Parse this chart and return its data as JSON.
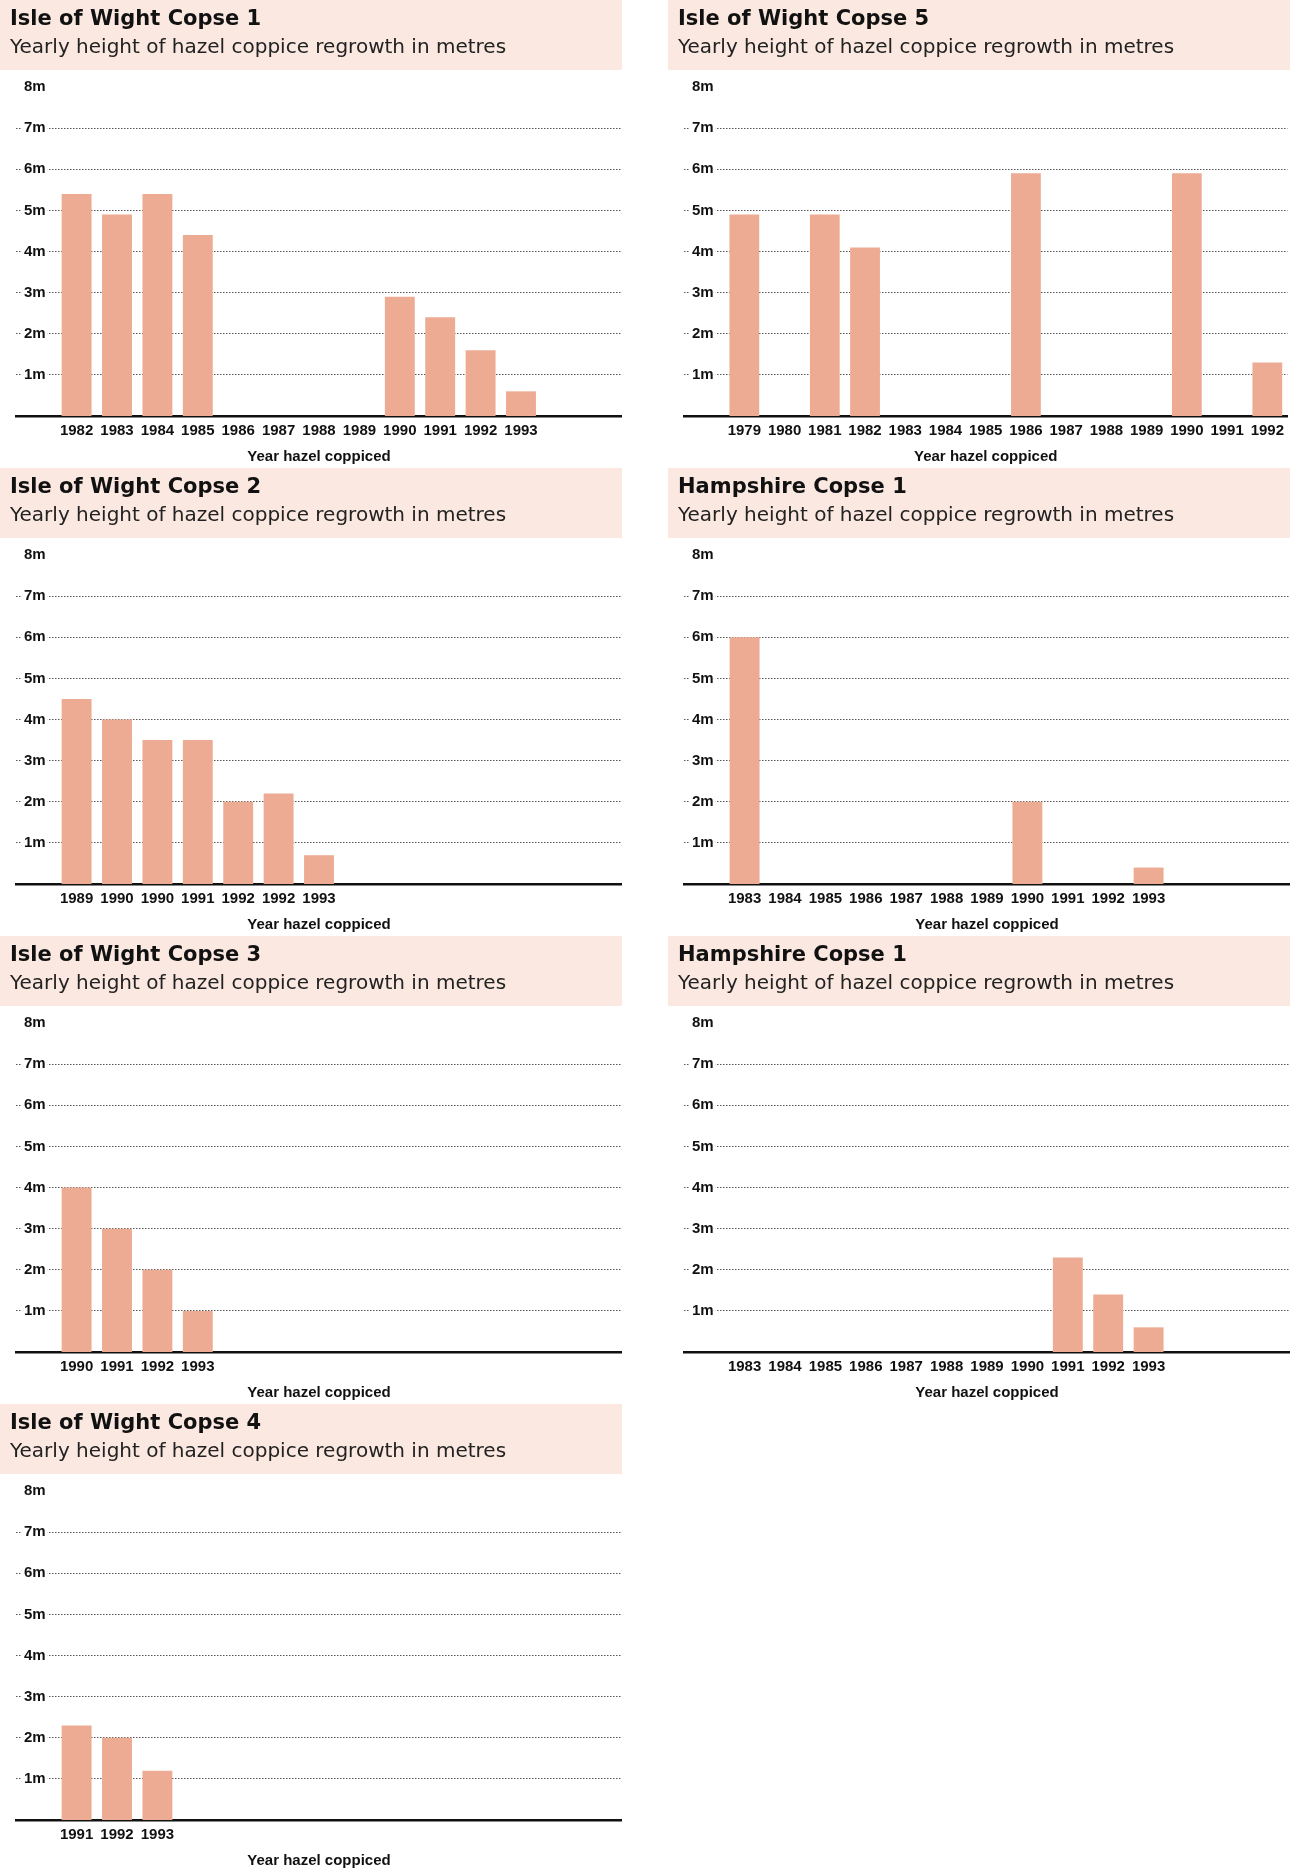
{
  "chart_data": [
    {
      "type": "bar",
      "title": "Isle of Wight Copse 1",
      "subtitle": "Yearly height of hazel coppice regrowth in metres",
      "xlabel": "Year hazel coppiced",
      "categories": [
        null,
        "1982",
        "1983",
        "1984",
        "1985",
        "1986",
        "1987",
        "1988",
        "1989",
        "1990",
        "1991",
        "1992",
        "1993",
        null,
        null
      ],
      "values": [
        null,
        5.4,
        4.9,
        5.4,
        4.4,
        null,
        null,
        null,
        null,
        2.9,
        2.4,
        1.6,
        0.6,
        null,
        null
      ],
      "color": "#edab93",
      "ylim": [
        0,
        8
      ],
      "yticks": [
        {
          "value": 1,
          "label": "1m"
        },
        {
          "value": 2,
          "label": "2m"
        },
        {
          "value": 3,
          "label": "3m"
        },
        {
          "value": 4,
          "label": "4m"
        },
        {
          "value": 5,
          "label": "5m"
        },
        {
          "value": 6,
          "label": "6m"
        },
        {
          "value": 7,
          "label": "7m"
        },
        {
          "value": 8,
          "label": "8m"
        }
      ],
      "grid": "y"
    },
    {
      "type": "bar",
      "title": "Isle of Wight Copse 5",
      "subtitle": "Yearly height of hazel coppice regrowth in metres",
      "xlabel": "Year hazel coppiced",
      "categories": [
        null,
        "1979",
        "1980",
        "1981",
        "1982",
        "1983",
        "1984",
        "1985",
        "1986",
        "1987",
        "1988",
        "1989",
        "1990",
        "1991",
        "1992"
      ],
      "values": [
        null,
        4.9,
        null,
        4.9,
        4.1,
        null,
        null,
        null,
        5.9,
        null,
        null,
        null,
        5.9,
        null,
        1.3
      ],
      "color": "#edab93",
      "ylim": [
        0,
        8
      ],
      "yticks": [
        {
          "value": 1,
          "label": "1m"
        },
        {
          "value": 2,
          "label": "2m"
        },
        {
          "value": 3,
          "label": "3m"
        },
        {
          "value": 4,
          "label": "4m"
        },
        {
          "value": 5,
          "label": "5m"
        },
        {
          "value": 6,
          "label": "6m"
        },
        {
          "value": 7,
          "label": "7m"
        },
        {
          "value": 8,
          "label": "8m"
        }
      ],
      "grid": "y"
    },
    {
      "type": "bar",
      "title": "Isle of Wight Copse 2",
      "subtitle": "Yearly height of hazel coppice regrowth in metres",
      "xlabel": "Year hazel coppiced",
      "categories": [
        null,
        "1989",
        "1990",
        "1990",
        "1991",
        "1992",
        "1992",
        "1993",
        null,
        null,
        null,
        null,
        null,
        null,
        null
      ],
      "values": [
        null,
        4.5,
        4.0,
        3.5,
        3.5,
        2.0,
        2.2,
        0.7,
        null,
        null,
        null,
        null,
        null,
        null,
        null
      ],
      "color": "#edab93",
      "ylim": [
        0,
        8
      ],
      "yticks": [
        {
          "value": 1,
          "label": "1m"
        },
        {
          "value": 2,
          "label": "2m"
        },
        {
          "value": 3,
          "label": "3m"
        },
        {
          "value": 4,
          "label": "4m"
        },
        {
          "value": 5,
          "label": "5m"
        },
        {
          "value": 6,
          "label": "6m"
        },
        {
          "value": 7,
          "label": "7m"
        },
        {
          "value": 8,
          "label": "8m"
        }
      ],
      "grid": "y"
    },
    {
      "type": "bar",
      "title": "Hampshire Copse 1",
      "subtitle": "Yearly height of hazel coppice regrowth in metres",
      "xlabel": "Year hazel coppiced",
      "categories": [
        null,
        "1983",
        "1984",
        "1985",
        "1986",
        "1987",
        "1988",
        "1989",
        "1990",
        "1991",
        "1992",
        "1993",
        null,
        null,
        null
      ],
      "values": [
        null,
        6.0,
        null,
        null,
        null,
        null,
        null,
        null,
        2.0,
        null,
        null,
        0.4,
        null,
        null,
        null
      ],
      "color": "#edab93",
      "ylim": [
        0,
        8
      ],
      "yticks": [
        {
          "value": 1,
          "label": "1m"
        },
        {
          "value": 2,
          "label": "2m"
        },
        {
          "value": 3,
          "label": "3m"
        },
        {
          "value": 4,
          "label": "4m"
        },
        {
          "value": 5,
          "label": "5m"
        },
        {
          "value": 6,
          "label": "6m"
        },
        {
          "value": 7,
          "label": "7m"
        },
        {
          "value": 8,
          "label": "8m"
        }
      ],
      "grid": "y"
    },
    {
      "type": "bar",
      "title": "Isle of Wight Copse 3",
      "subtitle": "Yearly height of hazel coppice regrowth in metres",
      "xlabel": "Year hazel coppiced",
      "categories": [
        null,
        "1990",
        "1991",
        "1992",
        "1993",
        null,
        null,
        null,
        null,
        null,
        null,
        null,
        null,
        null,
        null
      ],
      "values": [
        null,
        4.0,
        3.0,
        2.0,
        1.0,
        null,
        null,
        null,
        null,
        null,
        null,
        null,
        null,
        null,
        null
      ],
      "color": "#edab93",
      "ylim": [
        0,
        8
      ],
      "yticks": [
        {
          "value": 1,
          "label": "1m"
        },
        {
          "value": 2,
          "label": "2m"
        },
        {
          "value": 3,
          "label": "3m"
        },
        {
          "value": 4,
          "label": "4m"
        },
        {
          "value": 5,
          "label": "5m"
        },
        {
          "value": 6,
          "label": "6m"
        },
        {
          "value": 7,
          "label": "7m"
        },
        {
          "value": 8,
          "label": "8m"
        }
      ],
      "grid": "y"
    },
    {
      "type": "bar",
      "title": "Hampshire Copse 1",
      "subtitle": "Yearly height of hazel coppice regrowth in metres",
      "xlabel": "Year hazel coppiced",
      "categories": [
        null,
        "1983",
        "1984",
        "1985",
        "1986",
        "1987",
        "1988",
        "1989",
        "1990",
        "1991",
        "1992",
        "1993",
        null,
        null,
        null
      ],
      "values": [
        null,
        null,
        null,
        null,
        null,
        null,
        null,
        null,
        null,
        2.3,
        1.4,
        0.6,
        null,
        null,
        null
      ],
      "color": "#edab93",
      "ylim": [
        0,
        8
      ],
      "yticks": [
        {
          "value": 1,
          "label": "1m"
        },
        {
          "value": 2,
          "label": "2m"
        },
        {
          "value": 3,
          "label": "3m"
        },
        {
          "value": 4,
          "label": "4m"
        },
        {
          "value": 5,
          "label": "5m"
        },
        {
          "value": 6,
          "label": "6m"
        },
        {
          "value": 7,
          "label": "7m"
        },
        {
          "value": 8,
          "label": "8m"
        }
      ],
      "grid": "y"
    },
    {
      "type": "bar",
      "title": "Isle of Wight Copse 4",
      "subtitle": "Yearly height of hazel coppice regrowth in metres",
      "xlabel": "Year hazel coppiced",
      "categories": [
        null,
        "1991",
        "1992",
        "1993",
        null,
        null,
        null,
        null,
        null,
        null,
        null,
        null,
        null,
        null,
        null
      ],
      "values": [
        null,
        2.3,
        2.0,
        1.2,
        null,
        null,
        null,
        null,
        null,
        null,
        null,
        null,
        null,
        null,
        null
      ],
      "color": "#edab93",
      "ylim": [
        0,
        8
      ],
      "yticks": [
        {
          "value": 1,
          "label": "1m"
        },
        {
          "value": 2,
          "label": "2m"
        },
        {
          "value": 3,
          "label": "3m"
        },
        {
          "value": 4,
          "label": "4m"
        },
        {
          "value": 5,
          "label": "5m"
        },
        {
          "value": 6,
          "label": "6m"
        },
        {
          "value": 7,
          "label": "7m"
        },
        {
          "value": 8,
          "label": "8m"
        }
      ],
      "grid": "y"
    }
  ]
}
